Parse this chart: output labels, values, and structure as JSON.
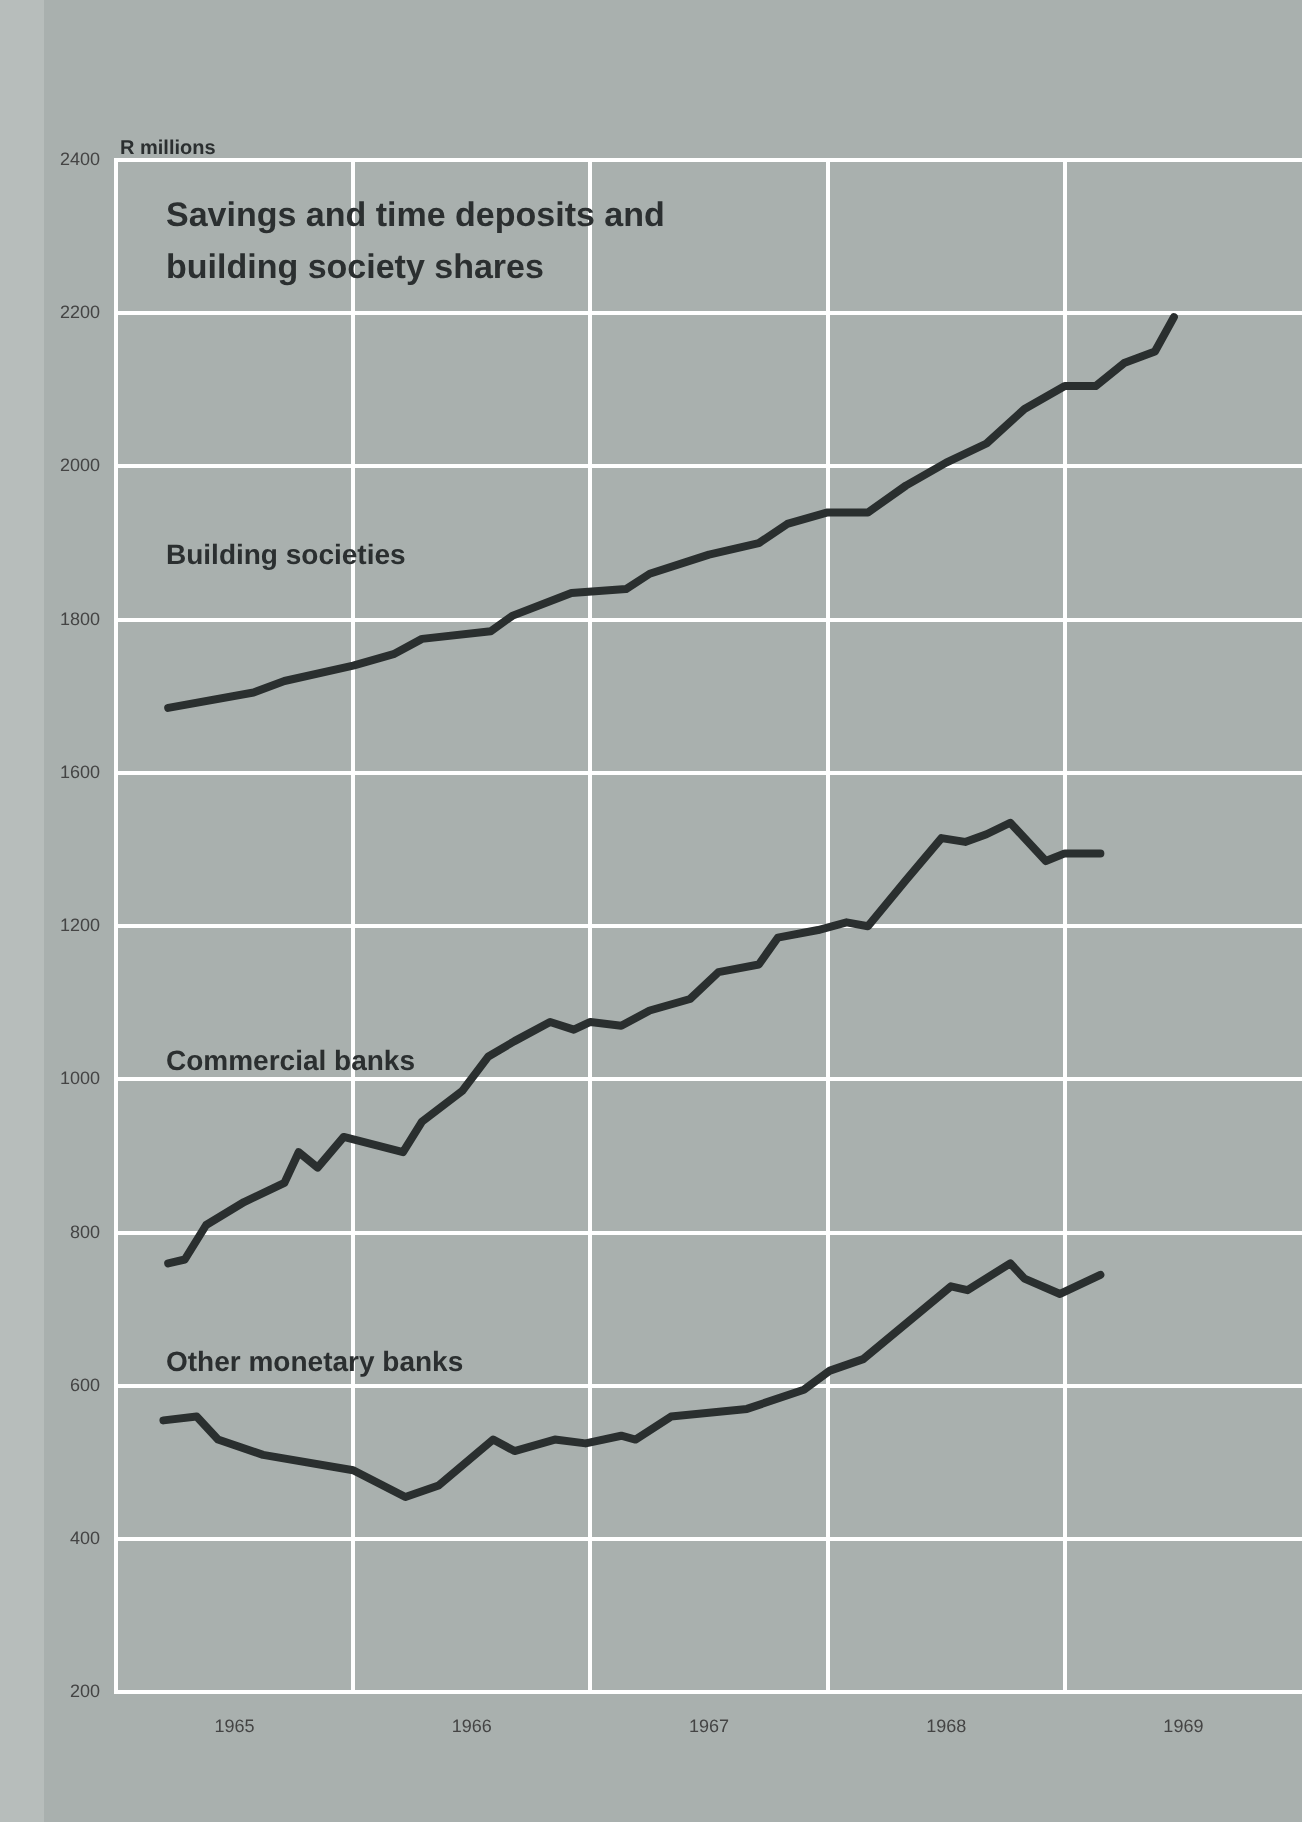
{
  "chart_data": {
    "type": "line",
    "title": "Savings and time deposits and building society shares",
    "y2label": "R millions",
    "xlim": [
      1965,
      1970
    ],
    "xticks": [
      {
        "value": 1965,
        "label": null
      },
      {
        "value": 1965.5,
        "label": "1965"
      },
      {
        "value": 1966,
        "label": null
      },
      {
        "value": 1966.5,
        "label": "1966"
      },
      {
        "value": 1967,
        "label": null
      },
      {
        "value": 1967.5,
        "label": "1967"
      },
      {
        "value": 1968,
        "label": null
      },
      {
        "value": 1968.5,
        "label": "1968"
      },
      {
        "value": 1969,
        "label": null
      },
      {
        "value": 1969.5,
        "label": "1969"
      }
    ],
    "ylim": [
      200,
      2200
    ],
    "yticks": [
      200,
      400,
      600,
      800,
      1000,
      1200
    ],
    "y2lim": [
      400,
      2400
    ],
    "y2ticks": [
      1600,
      1800,
      2000,
      2200,
      2400
    ],
    "grid": true,
    "legend": false,
    "marker": "none",
    "line_style": "solid",
    "series": [
      {
        "name": "Building societies",
        "color": "#2a2f2f",
        "axis": "y2",
        "x": [
          1965.22,
          1965.58,
          1965.71,
          1966.0,
          1966.17,
          1966.29,
          1966.58,
          1966.67,
          1966.92,
          1967.15,
          1967.25,
          1967.5,
          1967.71,
          1967.83,
          1968.0,
          1968.17,
          1968.33,
          1968.5,
          1968.67,
          1968.83,
          1969.0,
          1969.13,
          1969.25,
          1969.38,
          1969.46
        ],
        "values": [
          1685,
          1705,
          1720,
          1740,
          1755,
          1775,
          1785,
          1805,
          1835,
          1840,
          1860,
          1885,
          1900,
          1925,
          1940,
          1940,
          1975,
          2005,
          2030,
          2075,
          2105,
          2105,
          2135,
          2150,
          2195
        ]
      },
      {
        "name": "Commercial banks",
        "color": "#2a2f2f",
        "x": [
          1965.22,
          1965.29,
          1965.38,
          1965.54,
          1965.71,
          1965.77,
          1965.85,
          1965.96,
          1966.21,
          1966.29,
          1966.46,
          1966.57,
          1966.68,
          1966.83,
          1966.93,
          1967.0,
          1967.13,
          1967.25,
          1967.42,
          1967.54,
          1967.71,
          1967.79,
          1967.96,
          1968.08,
          1968.17,
          1968.33,
          1968.48,
          1968.58,
          1968.67,
          1968.77,
          1968.92,
          1969.0,
          1969.15
        ],
        "values": [
          760,
          765,
          810,
          840,
          865,
          905,
          885,
          925,
          905,
          945,
          985,
          1030,
          1050,
          1075,
          1065,
          1075,
          1070,
          1090,
          1105,
          1140,
          1150,
          1185,
          1195,
          1205,
          1200,
          1260,
          1315,
          1310,
          1320,
          1335,
          1285,
          1295,
          1295
        ]
      },
      {
        "name": "Other monetary banks",
        "color": "#2a2f2f",
        "x": [
          1965.2,
          1965.34,
          1965.43,
          1965.62,
          1966.0,
          1966.22,
          1966.36,
          1966.59,
          1966.68,
          1966.85,
          1966.98,
          1967.13,
          1967.19,
          1967.34,
          1967.66,
          1967.9,
          1968.01,
          1968.15,
          1968.52,
          1968.59,
          1968.77,
          1968.83,
          1968.98,
          1969.15
        ],
        "values": [
          555,
          560,
          530,
          510,
          490,
          455,
          470,
          530,
          515,
          530,
          525,
          535,
          530,
          560,
          570,
          595,
          620,
          635,
          730,
          725,
          760,
          740,
          720,
          745
        ]
      }
    ]
  }
}
